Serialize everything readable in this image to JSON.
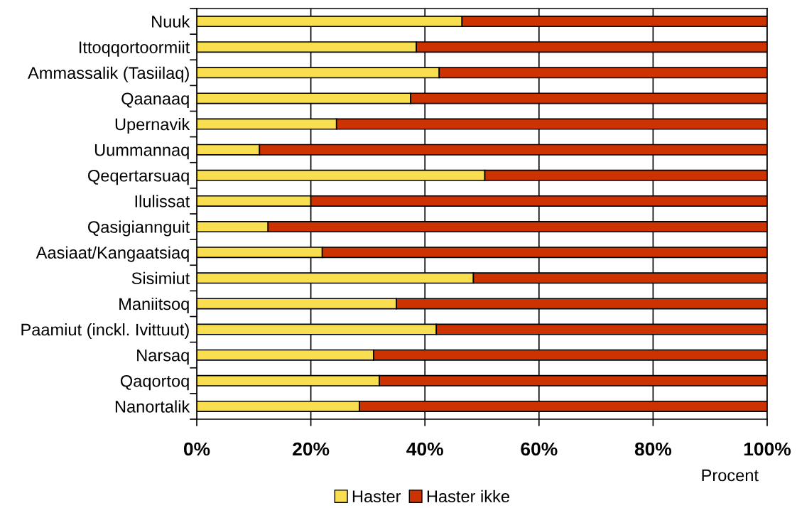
{
  "chart_data": {
    "type": "bar",
    "orientation": "horizontal",
    "stacked": true,
    "categories": [
      "Nuuk",
      "Ittoqqortoormiit",
      "Ammassalik (Tasiilaq)",
      "Qaanaaq",
      "Upernavik",
      "Uummannaq",
      "Qeqertarsuaq",
      "Ilulissat",
      "Qasigiannguit",
      "Aasiaat/Kangaatsiaq",
      "Sisimiut",
      "Maniitsoq",
      "Paamiut (inckl. Ivittuut)",
      "Narsaq",
      "Qaqortoq",
      "Nanortalik"
    ],
    "series": [
      {
        "name": "Haster",
        "color": "#f9df50",
        "values": [
          46.5,
          38.5,
          42.5,
          37.5,
          24.5,
          11,
          50.5,
          20,
          12.5,
          22,
          48.5,
          35,
          42,
          31,
          32,
          28.5
        ]
      },
      {
        "name": "Haster ikke",
        "color": "#cc3300",
        "values": [
          53.5,
          61.5,
          57.5,
          62.5,
          75.5,
          89,
          49.5,
          80,
          87.5,
          78,
          51.5,
          65,
          58,
          69,
          68,
          71.5
        ]
      }
    ],
    "xlim": [
      0,
      100
    ],
    "xticks": [
      {
        "value": 0,
        "label": "0%"
      },
      {
        "value": 20,
        "label": "20%"
      },
      {
        "value": 40,
        "label": "40%"
      },
      {
        "value": 60,
        "label": "60%"
      },
      {
        "value": 80,
        "label": "80%"
      },
      {
        "value": 100,
        "label": "100%"
      }
    ],
    "xlabel": "Procent",
    "grid": "x",
    "legend": "bottom"
  }
}
